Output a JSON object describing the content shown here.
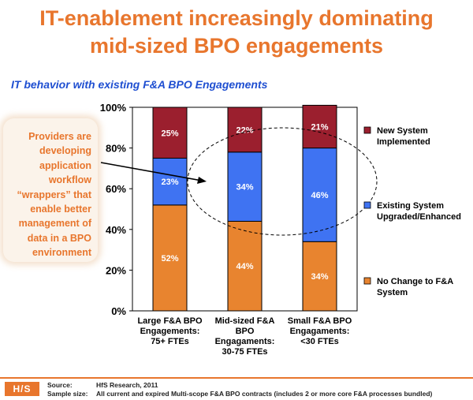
{
  "title_line1": "IT-enablement increasingly dominating",
  "title_line2": "mid-sized BPO engagements",
  "subtitle": "IT behavior with existing F&A BPO Engagements",
  "callout": "Providers are\ndeveloping\napplication\nworkflow\n“wrappers” that\nenable better\nmanagement of\ndata in a BPO\nenvironment",
  "footer": {
    "logo": "H/S",
    "source_label": "Source:",
    "source_value": "HfS Research, 2011",
    "sample_label": "Sample size:",
    "sample_value": "All current and expired Multi-scope F&A BPO contracts (includes 2 or more core F&A processes bundled)"
  },
  "colors": {
    "accent": "#e8762d",
    "new_system": "#9b1f2e",
    "upgraded": "#3f73f2",
    "no_change": "#e8842f"
  },
  "chart_data": {
    "type": "bar",
    "stacked": true,
    "categories": [
      [
        "Large F&A BPO",
        "Engagements:",
        "75+ FTEs"
      ],
      [
        "Mid-sized F&A",
        "BPO",
        "Engagaments:",
        "30-75 FTEs"
      ],
      [
        "Small F&A BPO",
        "Engagaments:",
        "<30 FTEs"
      ]
    ],
    "series": [
      {
        "name": "No Change to F&A System",
        "legend": [
          "No Change to F&A",
          "System"
        ],
        "color": "#e8842f",
        "values": [
          52,
          44,
          34
        ],
        "labels": [
          "52%",
          "44%",
          "34%"
        ]
      },
      {
        "name": "Existing System Upgraded/Enhanced",
        "legend": [
          "Existing System",
          "Upgraded/Enhanced"
        ],
        "color": "#3f73f2",
        "values": [
          23,
          34,
          46
        ],
        "labels": [
          "23%",
          "34%",
          "46%"
        ]
      },
      {
        "name": "New System Implemented",
        "legend": [
          "New System",
          "Implemented"
        ],
        "color": "#9b1f2e",
        "values": [
          25,
          22,
          21
        ],
        "labels": [
          "25%",
          "22%",
          "21%"
        ]
      }
    ],
    "ylim": [
      0,
      100
    ],
    "yticks": [
      0,
      20,
      40,
      60,
      80,
      100
    ],
    "ytick_labels": [
      "0%",
      "20%",
      "40%",
      "60%",
      "80%",
      "100%"
    ],
    "legend_position": "right",
    "grid": false
  }
}
